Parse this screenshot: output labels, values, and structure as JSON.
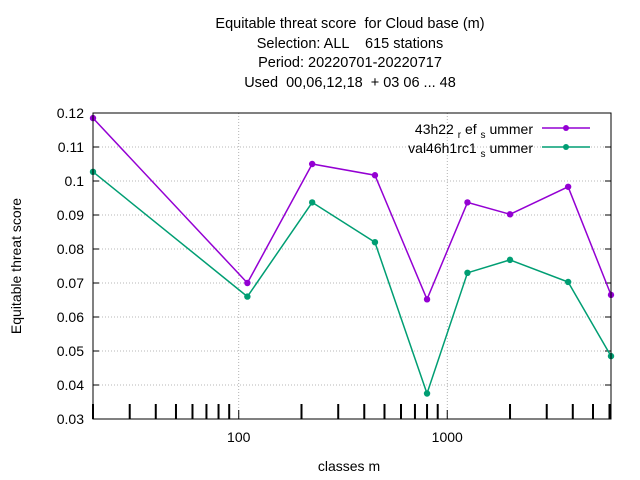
{
  "chart_data": {
    "type": "line",
    "title_lines": [
      "Equitable threat score  for Cloud base (m)",
      "Selection: ALL    615 stations",
      "Period: 20220701-20220717",
      "Used  00,06,12,18  + 03 06 ... 48"
    ],
    "xlabel": "classes m",
    "ylabel": "Equitable threat score",
    "x_scale": "log",
    "xlim": [
      20,
      6100
    ],
    "ylim": [
      0.03,
      0.12
    ],
    "x_major_ticks": [
      100,
      1000
    ],
    "y_ticks": [
      "0.03",
      "0.04",
      "0.05",
      "0.06",
      "0.07",
      "0.08",
      "0.09",
      "0.1",
      "0.11",
      "0.12"
    ],
    "grid": true,
    "legend_position": "top-right",
    "x": [
      20,
      110,
      225,
      450,
      800,
      1250,
      2000,
      3800,
      6100
    ],
    "series": [
      {
        "name": "43h22_ref_summer",
        "legend_main": "43h22",
        "legend_sub1": "r",
        "legend_mid": "ef",
        "legend_sub2": "s",
        "legend_tail": "ummer",
        "color": "#9400d3",
        "values": [
          0.1185,
          0.07,
          0.105,
          0.1017,
          0.0652,
          0.0937,
          0.0902,
          0.0983,
          0.0665
        ]
      },
      {
        "name": "val46h1rc1_summer",
        "legend_main": "val46h1rc1",
        "legend_sub1": "s",
        "legend_mid": "",
        "legend_sub2": "",
        "legend_tail": "ummer",
        "color": "#009e73",
        "values": [
          0.1027,
          0.066,
          0.0937,
          0.082,
          0.0375,
          0.073,
          0.0768,
          0.0703,
          0.0485
        ]
      }
    ]
  }
}
